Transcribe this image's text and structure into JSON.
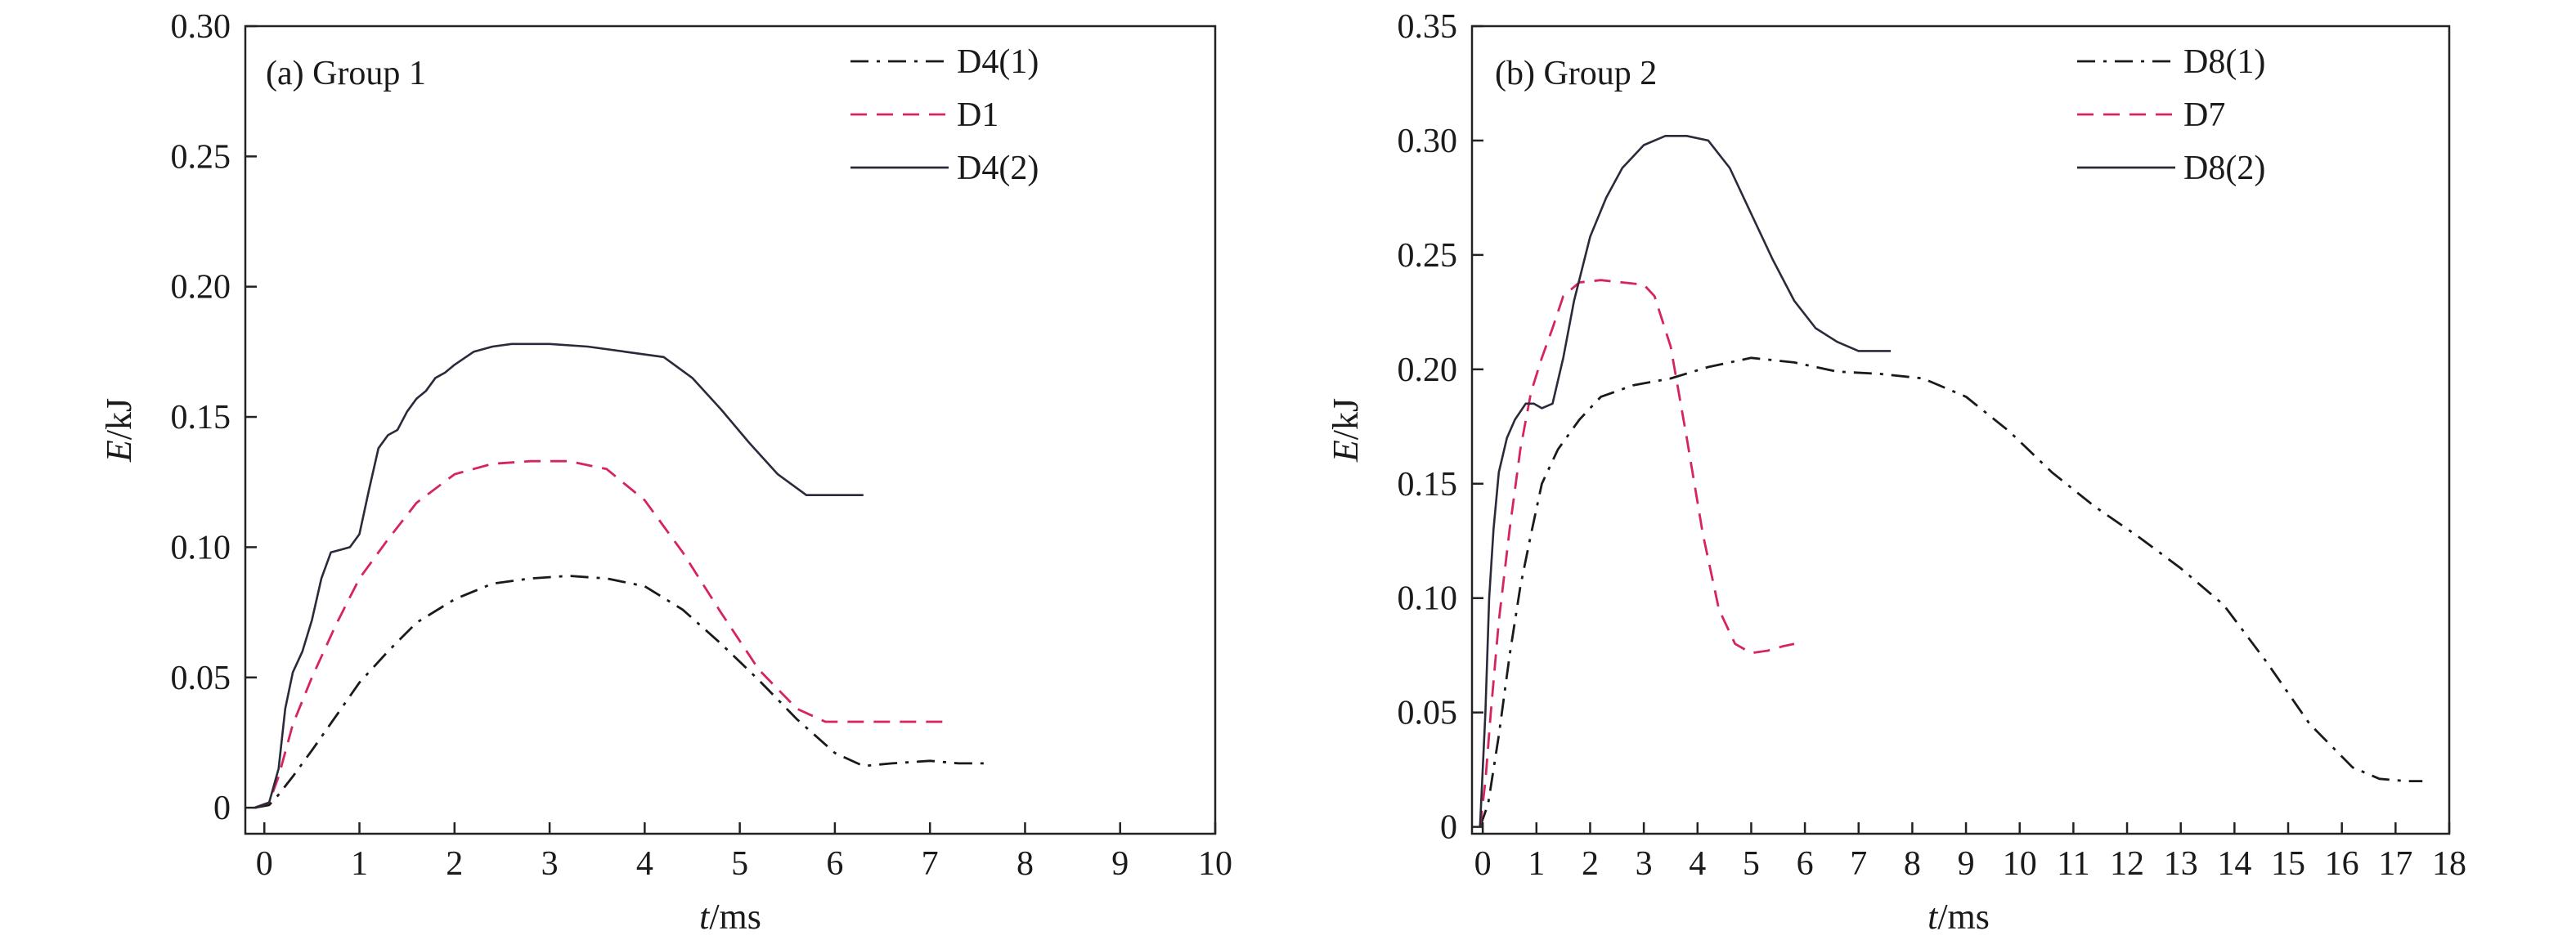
{
  "chart_data": [
    {
      "type": "line",
      "title": "(a) Group 1",
      "xlabel_var": "t",
      "xlabel_unit": "/ms",
      "ylabel_var": "E",
      "ylabel_unit": "/kJ",
      "xlim": [
        -0.2,
        10
      ],
      "ylim": [
        -0.01,
        0.3
      ],
      "xticks": [
        0,
        1,
        2,
        3,
        4,
        5,
        6,
        7,
        8,
        9,
        10
      ],
      "xtick_labels": [
        "0",
        "1",
        "2",
        "3",
        "4",
        "5",
        "6",
        "7",
        "8",
        "9",
        "10"
      ],
      "yticks": [
        0,
        0.05,
        0.1,
        0.15,
        0.2,
        0.25,
        0.3
      ],
      "ytick_labels": [
        "0",
        "0.05",
        "0.10",
        "0.15",
        "0.20",
        "0.25",
        "0.30"
      ],
      "legend_position": "top-right",
      "series": [
        {
          "name": "D4(1)",
          "style": "dashdot",
          "color": "#1a1a1a",
          "x": [
            -0.1,
            0.05,
            0.15,
            0.3,
            0.5,
            0.75,
            1.0,
            1.3,
            1.6,
            2.0,
            2.4,
            2.8,
            3.2,
            3.6,
            4.0,
            4.4,
            4.8,
            5.2,
            5.6,
            6.0,
            6.3,
            6.6,
            7.0,
            7.3,
            7.6
          ],
          "y": [
            0,
            0.001,
            0.005,
            0.012,
            0.022,
            0.035,
            0.048,
            0.06,
            0.071,
            0.08,
            0.086,
            0.088,
            0.089,
            0.088,
            0.085,
            0.076,
            0.063,
            0.049,
            0.034,
            0.021,
            0.016,
            0.017,
            0.018,
            0.017,
            0.017
          ]
        },
        {
          "name": "D1",
          "style": "dashed",
          "color": "#d6245f",
          "x": [
            -0.1,
            0.05,
            0.15,
            0.3,
            0.5,
            0.75,
            1.0,
            1.3,
            1.6,
            2.0,
            2.4,
            2.8,
            3.2,
            3.6,
            4.0,
            4.4,
            4.8,
            5.2,
            5.6,
            5.9,
            6.2,
            6.6,
            7.0,
            7.2
          ],
          "y": [
            0,
            0.002,
            0.012,
            0.032,
            0.05,
            0.07,
            0.088,
            0.103,
            0.117,
            0.128,
            0.132,
            0.133,
            0.133,
            0.13,
            0.118,
            0.098,
            0.075,
            0.053,
            0.038,
            0.033,
            0.033,
            0.033,
            0.033,
            0.033
          ]
        },
        {
          "name": "D4(2)",
          "style": "solid",
          "color": "#2a2a3a",
          "x": [
            -0.1,
            0.05,
            0.15,
            0.22,
            0.3,
            0.4,
            0.5,
            0.6,
            0.7,
            0.8,
            0.9,
            1.0,
            1.1,
            1.2,
            1.3,
            1.4,
            1.5,
            1.6,
            1.7,
            1.8,
            1.9,
            2.0,
            2.2,
            2.4,
            2.6,
            3.0,
            3.4,
            3.8,
            4.2,
            4.5,
            4.8,
            5.1,
            5.4,
            5.7,
            5.9,
            6.1,
            6.3
          ],
          "y": [
            0,
            0.002,
            0.015,
            0.038,
            0.052,
            0.06,
            0.072,
            0.088,
            0.098,
            0.099,
            0.1,
            0.105,
            0.122,
            0.138,
            0.143,
            0.145,
            0.152,
            0.157,
            0.16,
            0.165,
            0.167,
            0.17,
            0.175,
            0.177,
            0.178,
            0.178,
            0.177,
            0.175,
            0.173,
            0.165,
            0.153,
            0.14,
            0.128,
            0.12,
            0.12,
            0.12,
            0.12
          ]
        }
      ]
    },
    {
      "type": "line",
      "title": "(b) Group 2",
      "xlabel_var": "t",
      "xlabel_unit": "/ms",
      "ylabel_var": "E",
      "ylabel_unit": "/kJ",
      "xlim": [
        -0.2,
        18
      ],
      "ylim": [
        -0.003,
        0.35
      ],
      "xticks": [
        0,
        1,
        2,
        3,
        4,
        5,
        6,
        7,
        8,
        9,
        10,
        11,
        12,
        13,
        14,
        15,
        16,
        17,
        18
      ],
      "xtick_labels": [
        "0",
        "1",
        "2",
        "3",
        "4",
        "5",
        "6",
        "7",
        "8",
        "9",
        "10",
        "11",
        "12",
        "13",
        "14",
        "15",
        "16",
        "17",
        "18"
      ],
      "yticks": [
        0,
        0.05,
        0.1,
        0.15,
        0.2,
        0.25,
        0.3,
        0.35
      ],
      "ytick_labels": [
        "0",
        "0.05",
        "0.10",
        "0.15",
        "0.20",
        "0.25",
        "0.30",
        "0.35"
      ],
      "legend_position": "top-right",
      "series": [
        {
          "name": "D8(1)",
          "style": "dashdot",
          "color": "#1a1a1a",
          "x": [
            -0.05,
            0.1,
            0.3,
            0.5,
            0.7,
            0.9,
            1.1,
            1.4,
            1.8,
            2.2,
            2.8,
            3.5,
            4.2,
            5.0,
            5.8,
            6.6,
            7.4,
            8.2,
            9.0,
            9.8,
            10.6,
            11.4,
            12.2,
            13.0,
            13.8,
            14.6,
            15.4,
            16.2,
            16.7,
            17.2,
            17.5
          ],
          "y": [
            0,
            0.01,
            0.04,
            0.075,
            0.105,
            0.128,
            0.15,
            0.165,
            0.178,
            0.188,
            0.193,
            0.196,
            0.201,
            0.205,
            0.203,
            0.199,
            0.198,
            0.196,
            0.188,
            0.173,
            0.155,
            0.14,
            0.127,
            0.113,
            0.097,
            0.072,
            0.045,
            0.026,
            0.021,
            0.02,
            0.02
          ]
        },
        {
          "name": "D7",
          "style": "dashed",
          "color": "#d6245f",
          "x": [
            -0.05,
            0.05,
            0.15,
            0.3,
            0.5,
            0.7,
            0.9,
            1.1,
            1.3,
            1.5,
            1.8,
            2.2,
            2.6,
            3.0,
            3.2,
            3.5,
            3.8,
            4.1,
            4.4,
            4.7,
            5.0,
            5.3,
            5.6,
            5.8
          ],
          "y": [
            0,
            0.02,
            0.05,
            0.09,
            0.13,
            0.165,
            0.19,
            0.205,
            0.218,
            0.232,
            0.238,
            0.239,
            0.238,
            0.237,
            0.232,
            0.21,
            0.17,
            0.128,
            0.095,
            0.08,
            0.076,
            0.077,
            0.079,
            0.08
          ]
        },
        {
          "name": "D8(2)",
          "style": "solid",
          "color": "#2a2a3a",
          "x": [
            -0.05,
            0.05,
            0.12,
            0.2,
            0.3,
            0.45,
            0.6,
            0.8,
            0.95,
            1.1,
            1.3,
            1.5,
            1.7,
            2.0,
            2.3,
            2.6,
            3.0,
            3.4,
            3.8,
            4.2,
            4.6,
            5.0,
            5.4,
            5.8,
            6.2,
            6.6,
            7.0,
            7.3,
            7.6
          ],
          "y": [
            0,
            0.05,
            0.1,
            0.13,
            0.155,
            0.17,
            0.178,
            0.185,
            0.185,
            0.183,
            0.185,
            0.205,
            0.23,
            0.258,
            0.275,
            0.288,
            0.298,
            0.302,
            0.302,
            0.3,
            0.288,
            0.268,
            0.248,
            0.23,
            0.218,
            0.212,
            0.208,
            0.208,
            0.208
          ]
        }
      ]
    }
  ]
}
